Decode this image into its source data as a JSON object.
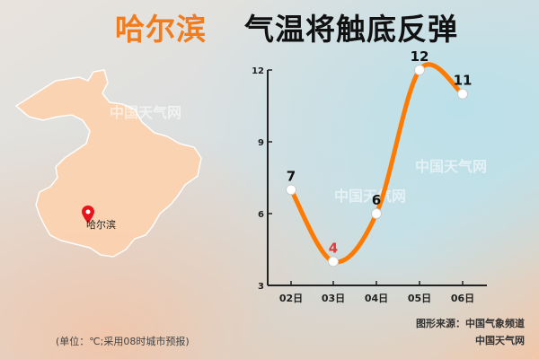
{
  "title": {
    "city": "哈尔滨",
    "main": "气温将触底反弹"
  },
  "map": {
    "marker_label": "哈尔滨",
    "marker_icon": "location-pin-icon"
  },
  "watermarks": [
    "中国天气网",
    "中国天气网",
    "中国天气网"
  ],
  "footer": {
    "unit_note": "(单位：℃;采用08时城市预报)",
    "source": "图形来源：中国气象频道",
    "brand": "中国天气网"
  },
  "colors": {
    "accent": "#f07c1e",
    "title_dark": "#111111",
    "line": "#ff7a00",
    "low_label": "#e23a3a",
    "map_fill": "#fcd3b1",
    "marker": "#e8141b"
  },
  "chart_data": {
    "type": "line",
    "x": [
      "02日",
      "03日",
      "04日",
      "05日",
      "06日"
    ],
    "series": [
      {
        "values": [
          7,
          4,
          6,
          12,
          11
        ]
      }
    ],
    "ylim": [
      3,
      12
    ],
    "yticks": [
      "3",
      "6",
      "9",
      "12"
    ],
    "highlight_min": true,
    "grid": false
  }
}
